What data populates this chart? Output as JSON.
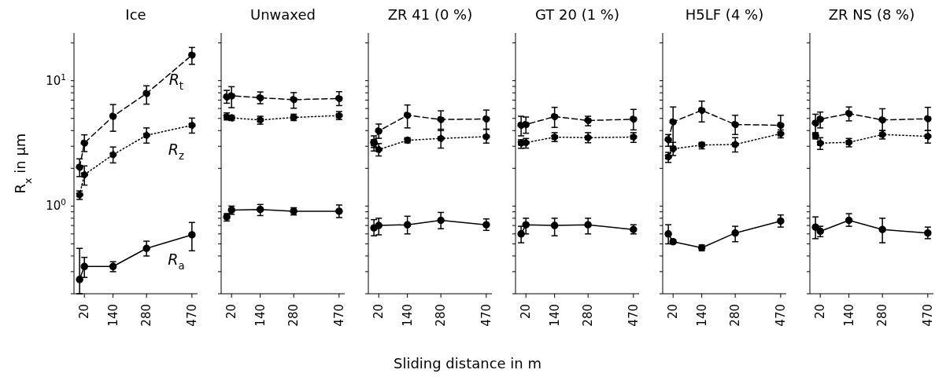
{
  "chart_data": [
    {
      "type": "line",
      "title": "Ice",
      "ylabel": "R$_{x}$ in μm",
      "log": "y",
      "marker": "circle",
      "x": [
        0,
        20,
        140,
        280,
        470
      ],
      "xlim": [
        -23.5,
        493.5
      ],
      "xticks": [
        20,
        140,
        280,
        470
      ],
      "ylim": [
        0.2,
        24
      ],
      "yticks": [
        {
          "value": 0.2,
          "label": null
        },
        {
          "value": 0.3,
          "label": null
        },
        {
          "value": 0.4,
          "label": null
        },
        {
          "value": 0.5,
          "label": null
        },
        {
          "value": 0.6,
          "label": null
        },
        {
          "value": 0.7,
          "label": null
        },
        {
          "value": 0.8,
          "label": null
        },
        {
          "value": 0.9,
          "label": null
        },
        {
          "value": 1,
          "label": "10$^{0}$"
        },
        {
          "value": 2,
          "label": null
        },
        {
          "value": 3,
          "label": null
        },
        {
          "value": 4,
          "label": null
        },
        {
          "value": 5,
          "label": null
        },
        {
          "value": 6,
          "label": null
        },
        {
          "value": 7,
          "label": null
        },
        {
          "value": 8,
          "label": null
        },
        {
          "value": 9,
          "label": null
        },
        {
          "value": 10,
          "label": "10$^{1}$"
        },
        {
          "value": 20,
          "label": null
        }
      ],
      "series": [
        {
          "name": "R$_{a}$",
          "color": "#000000",
          "line_style": "solid",
          "values": [
            0.26,
            0.33,
            0.33,
            0.46,
            0.59
          ],
          "errors": [
            [
              0.2,
              0.46
            ],
            [
              0.27,
              0.39
            ],
            [
              0.3,
              0.36
            ],
            [
              0.4,
              0.525
            ],
            [
              0.44,
              0.74
            ]
          ]
        },
        {
          "name": "R$_{z}$",
          "color": "#000000",
          "line_style": "dotted",
          "values": [
            1.23,
            1.78,
            2.57,
            3.67,
            4.41
          ],
          "errors": [
            [
              1.13,
              1.32
            ],
            [
              1.47,
              2.09
            ],
            [
              2.21,
              2.96
            ],
            [
              3.18,
              4.2
            ],
            [
              3.82,
              5.03
            ]
          ]
        },
        {
          "name": "R$_{t}$",
          "color": "#000000",
          "line_style": "dashed",
          "values": [
            2.04,
            3.18,
            5.2,
            7.9,
            16.0
          ],
          "errors": [
            [
              1.72,
              2.38
            ],
            [
              2.72,
              3.7
            ],
            [
              3.95,
              6.45
            ],
            [
              6.5,
              9.1
            ],
            [
              13.5,
              18.4
            ]
          ]
        }
      ]
    },
    {
      "type": "line",
      "title": "Unwaxed",
      "tick_labels": "x",
      "log": "y",
      "marker": "circle",
      "x": [
        0,
        20,
        140,
        280,
        470
      ],
      "xlim": [
        -23.5,
        493.5
      ],
      "xticks": [
        20,
        140,
        280,
        470
      ],
      "ylim": [
        0.2,
        24
      ],
      "yticks": [
        {
          "value": 0.2,
          "label": null
        },
        {
          "value": 0.3,
          "label": null
        },
        {
          "value": 0.4,
          "label": null
        },
        {
          "value": 0.5,
          "label": null
        },
        {
          "value": 0.6,
          "label": null
        },
        {
          "value": 0.7,
          "label": null
        },
        {
          "value": 0.8,
          "label": null
        },
        {
          "value": 0.9,
          "label": null
        },
        {
          "value": 1,
          "label": null
        },
        {
          "value": 2,
          "label": null
        },
        {
          "value": 3,
          "label": null
        },
        {
          "value": 4,
          "label": null
        },
        {
          "value": 5,
          "label": null
        },
        {
          "value": 6,
          "label": null
        },
        {
          "value": 7,
          "label": null
        },
        {
          "value": 8,
          "label": null
        },
        {
          "value": 9,
          "label": null
        },
        {
          "value": 10,
          "label": null
        },
        {
          "value": 20,
          "label": null
        }
      ],
      "series": [
        {
          "color": "#000000",
          "line_style": "solid",
          "values": [
            0.82,
            0.93,
            0.94,
            0.91,
            0.91
          ],
          "errors": [
            [
              0.76,
              0.87
            ],
            [
              0.86,
              1.0
            ],
            [
              0.84,
              1.03
            ],
            [
              0.85,
              0.97
            ],
            [
              0.81,
              1.02
            ]
          ]
        },
        {
          "color": "#000000",
          "line_style": "dotted",
          "values": [
            5.17,
            5.05,
            4.86,
            5.09,
            5.27
          ],
          "errors": [
            [
              4.86,
              5.53
            ],
            [
              4.81,
              5.29
            ],
            [
              4.5,
              5.2
            ],
            [
              4.81,
              5.4
            ],
            [
              4.9,
              5.67
            ]
          ]
        },
        {
          "color": "#000000",
          "line_style": "dashed",
          "values": [
            7.42,
            7.57,
            7.3,
            7.06,
            7.2
          ],
          "errors": [
            [
              6.61,
              8.37
            ],
            [
              6.09,
              8.95
            ],
            [
              6.55,
              8.13
            ],
            [
              6.03,
              8.03
            ],
            [
              6.33,
              8.17
            ]
          ]
        }
      ]
    },
    {
      "type": "line",
      "title": "ZR 41 (0 %)",
      "xlabel": "Sliding distance in m",
      "tick_labels": "x",
      "log": "y",
      "marker": "circle",
      "x": [
        0,
        20,
        140,
        280,
        470
      ],
      "xlim": [
        -23.5,
        493.5
      ],
      "xticks": [
        20,
        140,
        280,
        470
      ],
      "ylim": [
        0.2,
        24
      ],
      "yticks": [
        {
          "value": 0.2,
          "label": null
        },
        {
          "value": 0.3,
          "label": null
        },
        {
          "value": 0.4,
          "label": null
        },
        {
          "value": 0.5,
          "label": null
        },
        {
          "value": 0.6,
          "label": null
        },
        {
          "value": 0.7,
          "label": null
        },
        {
          "value": 0.8,
          "label": null
        },
        {
          "value": 0.9,
          "label": null
        },
        {
          "value": 1,
          "label": null
        },
        {
          "value": 2,
          "label": null
        },
        {
          "value": 3,
          "label": null
        },
        {
          "value": 4,
          "label": null
        },
        {
          "value": 5,
          "label": null
        },
        {
          "value": 6,
          "label": null
        },
        {
          "value": 7,
          "label": null
        },
        {
          "value": 8,
          "label": null
        },
        {
          "value": 9,
          "label": null
        },
        {
          "value": 10,
          "label": null
        },
        {
          "value": 20,
          "label": null
        }
      ],
      "series": [
        {
          "color": "#000000",
          "line_style": "solid",
          "values": [
            0.67,
            0.7,
            0.71,
            0.77,
            0.71
          ],
          "errors": [
            [
              0.58,
              0.78
            ],
            [
              0.59,
              0.8
            ],
            [
              0.6,
              0.83
            ],
            [
              0.66,
              0.89
            ],
            [
              0.64,
              0.79
            ]
          ]
        },
        {
          "color": "#000000",
          "line_style": "dotted",
          "values": [
            3.15,
            2.82,
            3.35,
            3.46,
            3.58
          ],
          "errors": [
            [
              2.75,
              3.38
            ],
            [
              2.51,
              3.15
            ],
            [
              3.19,
              3.51
            ],
            [
              2.9,
              4.1
            ],
            [
              3.18,
              4.1
            ]
          ]
        },
        {
          "color": "#000000",
          "line_style": "dashed",
          "values": [
            3.22,
            3.97,
            5.3,
            4.9,
            4.95
          ],
          "errors": [
            [
              2.93,
              3.63
            ],
            [
              3.47,
              4.51
            ],
            [
              4.2,
              6.4
            ],
            [
              4.0,
              5.75
            ],
            [
              4.1,
              5.83
            ]
          ]
        }
      ]
    },
    {
      "type": "line",
      "title": "GT 20 (1 %)",
      "tick_labels": "x",
      "log": "y",
      "marker": "circle",
      "x": [
        0,
        20,
        140,
        280,
        470
      ],
      "xlim": [
        -23.5,
        493.5
      ],
      "xticks": [
        20,
        140,
        280,
        470
      ],
      "ylim": [
        0.2,
        24
      ],
      "yticks": [
        {
          "value": 0.2,
          "label": null
        },
        {
          "value": 0.3,
          "label": null
        },
        {
          "value": 0.4,
          "label": null
        },
        {
          "value": 0.5,
          "label": null
        },
        {
          "value": 0.6,
          "label": null
        },
        {
          "value": 0.7,
          "label": null
        },
        {
          "value": 0.8,
          "label": null
        },
        {
          "value": 0.9,
          "label": null
        },
        {
          "value": 1,
          "label": null
        },
        {
          "value": 2,
          "label": null
        },
        {
          "value": 3,
          "label": null
        },
        {
          "value": 4,
          "label": null
        },
        {
          "value": 5,
          "label": null
        },
        {
          "value": 6,
          "label": null
        },
        {
          "value": 7,
          "label": null
        },
        {
          "value": 8,
          "label": null
        },
        {
          "value": 9,
          "label": null
        },
        {
          "value": 10,
          "label": null
        },
        {
          "value": 20,
          "label": null
        }
      ],
      "series": [
        {
          "color": "#000000",
          "line_style": "solid",
          "values": [
            0.6,
            0.71,
            0.7,
            0.71,
            0.65
          ],
          "errors": [
            [
              0.51,
              0.69
            ],
            [
              0.6,
              0.8
            ],
            [
              0.58,
              0.8
            ],
            [
              0.6,
              0.8
            ],
            [
              0.6,
              0.71
            ]
          ]
        },
        {
          "color": "#000000",
          "line_style": "dotted",
          "values": [
            3.18,
            3.2,
            3.55,
            3.51,
            3.55
          ],
          "errors": [
            [
              2.89,
              3.38
            ],
            [
              2.9,
              3.46
            ],
            [
              3.27,
              3.85
            ],
            [
              3.2,
              3.85
            ],
            [
              3.22,
              3.85
            ]
          ]
        },
        {
          "color": "#000000",
          "line_style": "dashed",
          "values": [
            4.41,
            4.47,
            5.17,
            4.81,
            4.93
          ],
          "errors": [
            [
              3.63,
              5.2
            ],
            [
              3.81,
              5.13
            ],
            [
              4.24,
              6.13
            ],
            [
              4.37,
              5.2
            ],
            [
              4.05,
              5.9
            ]
          ]
        }
      ]
    },
    {
      "type": "line",
      "title": "H5LF (4 %)",
      "tick_labels": "x",
      "log": "y",
      "marker": "circle",
      "x": [
        0,
        20,
        140,
        280,
        470
      ],
      "xlim": [
        -23.5,
        493.5
      ],
      "xticks": [
        20,
        140,
        280,
        470
      ],
      "ylim": [
        0.2,
        24
      ],
      "yticks": [
        {
          "value": 0.2,
          "label": null
        },
        {
          "value": 0.3,
          "label": null
        },
        {
          "value": 0.4,
          "label": null
        },
        {
          "value": 0.5,
          "label": null
        },
        {
          "value": 0.6,
          "label": null
        },
        {
          "value": 0.7,
          "label": null
        },
        {
          "value": 0.8,
          "label": null
        },
        {
          "value": 0.9,
          "label": null
        },
        {
          "value": 1,
          "label": null
        },
        {
          "value": 2,
          "label": null
        },
        {
          "value": 3,
          "label": null
        },
        {
          "value": 4,
          "label": null
        },
        {
          "value": 5,
          "label": null
        },
        {
          "value": 6,
          "label": null
        },
        {
          "value": 7,
          "label": null
        },
        {
          "value": 8,
          "label": null
        },
        {
          "value": 9,
          "label": null
        },
        {
          "value": 10,
          "label": null
        },
        {
          "value": 20,
          "label": null
        }
      ],
      "series": [
        {
          "color": "#000000",
          "line_style": "solid",
          "values": [
            0.6,
            0.52,
            0.465,
            0.61,
            0.76
          ],
          "errors": [
            [
              0.5,
              0.71
            ],
            [
              0.5,
              0.54
            ],
            [
              0.44,
              0.49
            ],
            [
              0.52,
              0.69
            ],
            [
              0.68,
              0.85
            ]
          ]
        },
        {
          "color": "#000000",
          "line_style": "dotted",
          "values": [
            2.47,
            2.86,
            3.07,
            3.1,
            3.78
          ],
          "errors": [
            [
              2.23,
              2.68
            ],
            [
              2.53,
              3.22
            ],
            [
              2.86,
              3.22
            ],
            [
              2.7,
              3.51
            ],
            [
              3.5,
              4.05
            ]
          ]
        },
        {
          "color": "#000000",
          "line_style": "dashed",
          "values": [
            3.38,
            4.69,
            5.8,
            4.47,
            4.41
          ],
          "errors": [
            [
              3.0,
              3.72
            ],
            [
              3.0,
              6.17
            ],
            [
              4.69,
              6.87
            ],
            [
              3.72,
              5.3
            ],
            [
              3.81,
              5.3
            ]
          ]
        }
      ]
    },
    {
      "type": "line",
      "title": "ZR NS (8 %)",
      "tick_labels": "x",
      "log": "y",
      "marker": "circle",
      "x": [
        0,
        20,
        140,
        280,
        470
      ],
      "xlim": [
        -23.5,
        493.5
      ],
      "xticks": [
        20,
        140,
        280,
        470
      ],
      "ylim": [
        0.2,
        24
      ],
      "yticks": [
        {
          "value": 0.2,
          "label": null
        },
        {
          "value": 0.3,
          "label": null
        },
        {
          "value": 0.4,
          "label": null
        },
        {
          "value": 0.5,
          "label": null
        },
        {
          "value": 0.6,
          "label": null
        },
        {
          "value": 0.7,
          "label": null
        },
        {
          "value": 0.8,
          "label": null
        },
        {
          "value": 0.9,
          "label": null
        },
        {
          "value": 1,
          "label": null
        },
        {
          "value": 2,
          "label": null
        },
        {
          "value": 3,
          "label": null
        },
        {
          "value": 4,
          "label": null
        },
        {
          "value": 5,
          "label": null
        },
        {
          "value": 6,
          "label": null
        },
        {
          "value": 7,
          "label": null
        },
        {
          "value": 8,
          "label": null
        },
        {
          "value": 9,
          "label": null
        },
        {
          "value": 10,
          "label": null
        },
        {
          "value": 20,
          "label": null
        }
      ],
      "series": [
        {
          "color": "#000000",
          "line_style": "solid",
          "values": [
            0.68,
            0.63,
            0.77,
            0.65,
            0.61
          ],
          "errors": [
            [
              0.55,
              0.82
            ],
            [
              0.57,
              0.69
            ],
            [
              0.69,
              0.87
            ],
            [
              0.51,
              0.8
            ],
            [
              0.55,
              0.68
            ]
          ]
        },
        {
          "color": "#000000",
          "line_style": "dotted",
          "values": [
            3.64,
            3.18,
            3.22,
            3.72,
            3.6
          ],
          "errors": [
            [
              3.43,
              3.81
            ],
            [
              2.83,
              3.51
            ],
            [
              2.97,
              3.46
            ],
            [
              3.43,
              4.0
            ],
            [
              3.18,
              4.0
            ]
          ]
        },
        {
          "color": "#000000",
          "line_style": "dashed",
          "values": [
            4.58,
            4.93,
            5.47,
            4.86,
            4.97
          ],
          "errors": [
            [
              3.85,
              5.4
            ],
            [
              4.2,
              5.62
            ],
            [
              4.78,
              6.17
            ],
            [
              4.0,
              5.97
            ],
            [
              4.0,
              6.13
            ]
          ]
        }
      ]
    }
  ]
}
